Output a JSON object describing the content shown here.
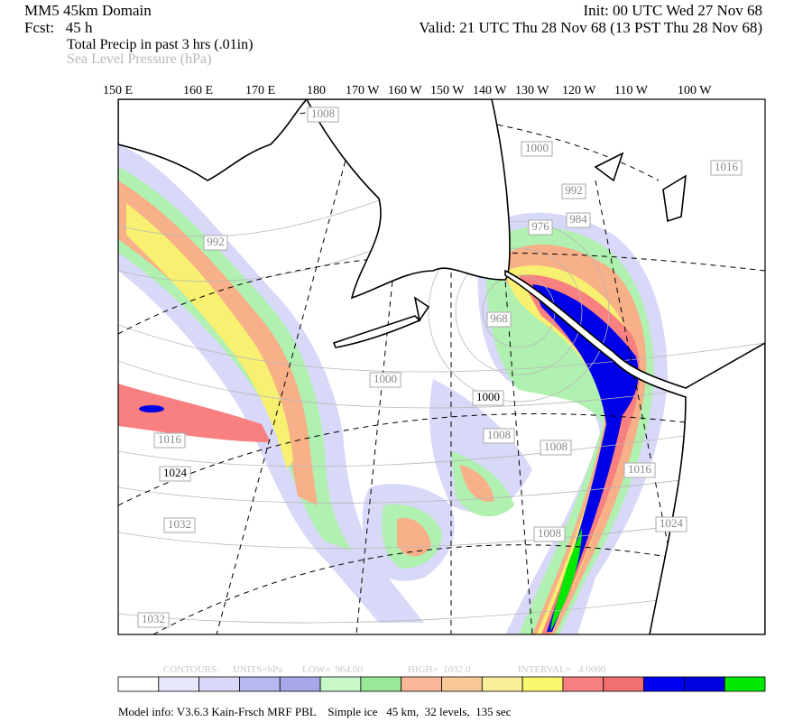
{
  "header": {
    "domain": "MM5 45km Domain",
    "forecast": "Fcst:   45 h",
    "init": "Init: 00 UTC Wed 27 Nov 68",
    "valid": "Valid: 21 UTC Thu 28 Nov 68 (13 PST Thu 28 Nov 68)",
    "field1": "Total Precip in past 3 hrs (.01in)",
    "field2": "Sea Level Pressure (hPa)"
  },
  "longitude_labels": [
    "150 E",
    "160 E",
    "170 E",
    "180",
    "170 W",
    "160 W",
    "150 W",
    "140 W",
    "130 W",
    "120 W",
    "110 W",
    "100 W"
  ],
  "contour_labels": [
    "1008",
    "1000",
    "1016",
    "992",
    "976",
    "984",
    "992",
    "968",
    "1000",
    "1000",
    "1008",
    "1008",
    "1016",
    "1016",
    "1024",
    "1024",
    "1032",
    "1008",
    "1032"
  ],
  "contour_info": {
    "contours": "CONTOURS:",
    "units": "UNITS=hPa",
    "low": "LOW=  964.00",
    "high": "HIGH=  1032.0",
    "interval": "INTERVAL=   4.0000"
  },
  "footer": "Model info: V3.6.3 Kain-Frsch MRF PBL    Simple ice   45 km,  32 levels,  135 sec"
}
